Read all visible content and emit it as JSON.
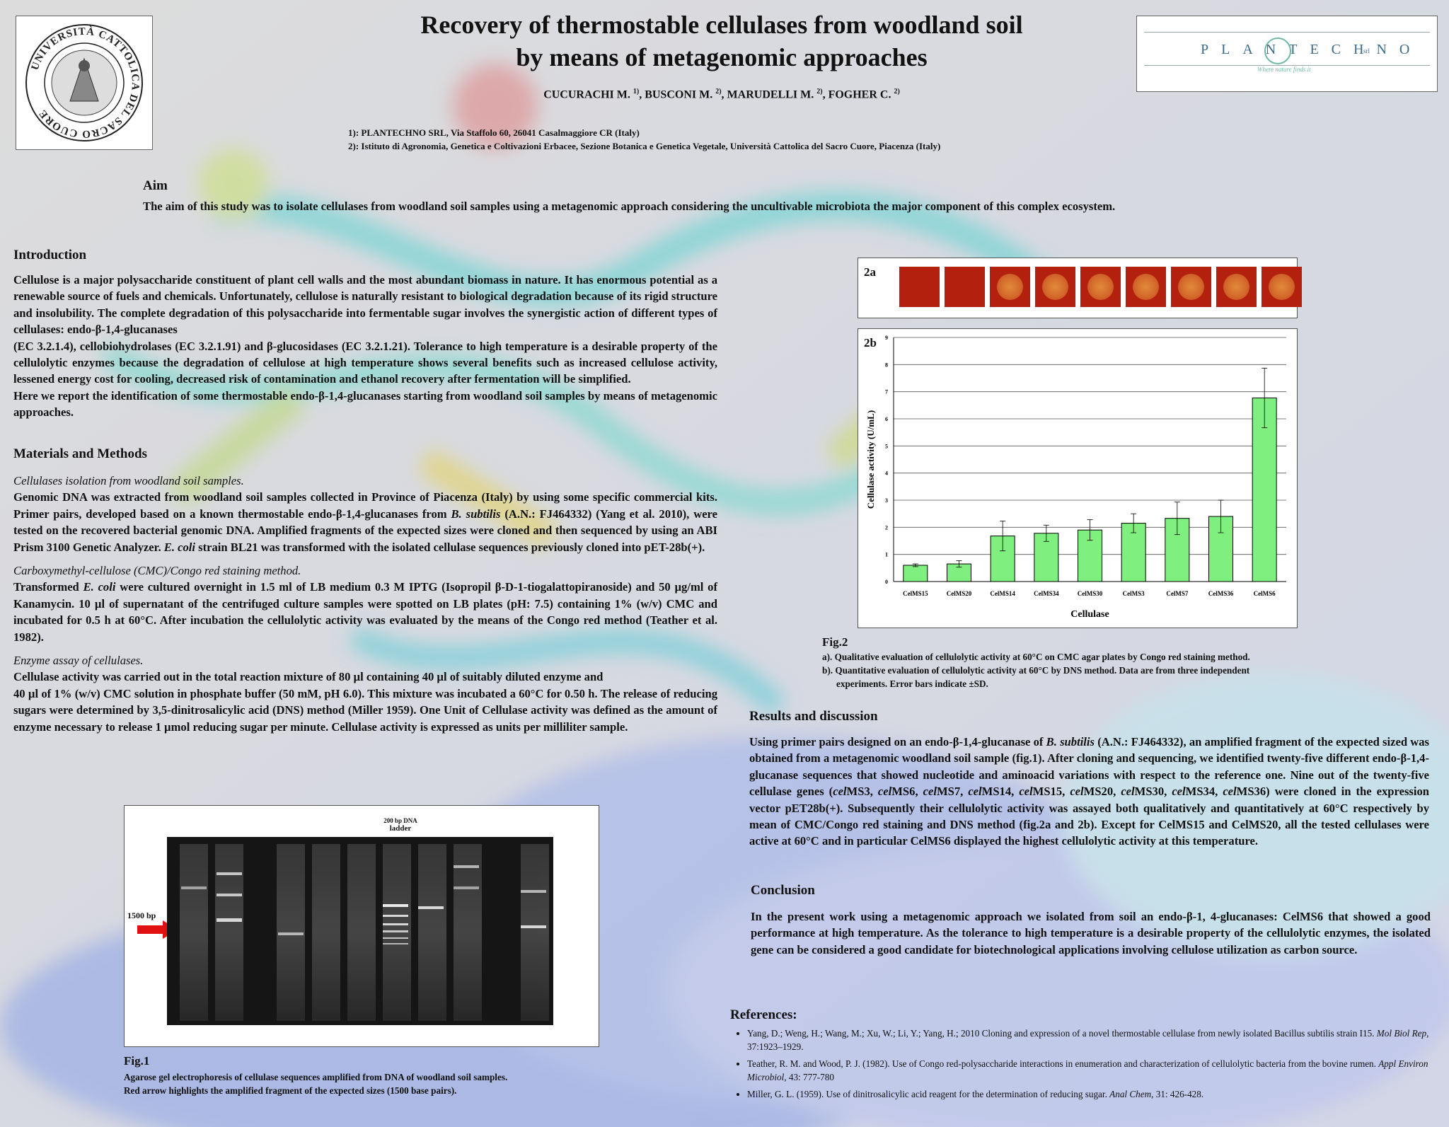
{
  "title_line1": "Recovery of thermostable cellulases from woodland soil",
  "title_line2": "by means of metagenomic approaches",
  "authors": {
    "a1": "CUCURACHI M. ",
    "a1_sup": "1)",
    "a2": ", BUSCONI M. ",
    "a2_sup": "2)",
    "a3": ", MARUDELLI M. ",
    "a3_sup": "2)",
    "a4": ", FOGHER C. ",
    "a4_sup": "2)"
  },
  "affiliations": [
    "1): PLANTECHNO SRL, Via Staffolo 60, 26041 Casalmaggiore CR (Italy)",
    "2): Istituto di Agronomia, Genetica e Coltivazioni Erbacee, Sezione Botanica e Genetica Vegetale, Università Cattolica del Sacro Cuore, Piacenza (Italy)"
  ],
  "logos": {
    "university_text": "UNIVERSITÀ CATTOLICA DEL SACRO CUORE",
    "plantechno": "PLANTECHNO",
    "plantechno_suffix": "srl",
    "plantechno_tagline": "Where nature finds it"
  },
  "aim": {
    "heading": "Aim",
    "text": "The aim of this study was to isolate cellulases from woodland soil samples using a metagenomic approach considering the uncultivable microbiota the major component of this complex ecosystem."
  },
  "introduction": {
    "heading": "Introduction",
    "p1": "Cellulose is a major polysaccharide constituent of plant cell walls and the most abundant biomass in nature. It has enormous potential as a renewable source of fuels and chemicals. Unfortunately, cellulose is naturally resistant to biological degradation because of its rigid structure and insolubility. The complete degradation of this polysaccharide into fermentable sugar involves the synergistic action of different types of cellulases: endo-β-1,4-glucanases",
    "p2": "(EC 3.2.1.4), cellobiohydrolases (EC 3.2.1.91) and β-glucosidases (EC 3.2.1.21). Tolerance to high temperature is a desirable property of the cellulolytic enzymes because the degradation of cellulose at high temperature shows several benefits such as increased cellulose activity, lessened energy cost for cooling, decreased risk of contamination and ethanol recovery after fermentation will be simplified.",
    "p3": "Here we report the identification of some thermostable endo-β-1,4-glucanases starting from woodland soil samples by means of metagenomic approaches."
  },
  "methods": {
    "heading": "Materials and Methods",
    "s1_title": "Cellulases isolation from woodland soil samples.",
    "s1_a": "Genomic DNA was extracted from woodland soil samples collected in Province of Piacenza (Italy) by using some specific commercial kits. Primer pairs, developed based on a known thermostable endo-β-1,4-glucanases from ",
    "s1_i1": "B. subtilis",
    "s1_b": " (A.N.: FJ464332) (Yang et al. 2010), were tested on the recovered bacterial genomic DNA. Amplified fragments of the expected sizes were cloned and then sequenced by using an ABI Prism 3100 Genetic Analyzer. ",
    "s1_i2": "E. coli",
    "s1_c": " strain BL21 was transformed with the isolated cellulase sequences previously cloned into pET-28b(+).",
    "s2_title": "Carboxymethyl-cellulose (CMC)/Congo red staining method.",
    "s2_a": "Transformed ",
    "s2_i1": "E. coli",
    "s2_b": " were cultured overnight in 1.5 ml of LB medium 0.3 M IPTG (Isopropil β-D-1-tiogalattopiranoside) and 50 µg/ml of Kanamycin. 10 µl of supernatant of the centrifuged culture samples were spotted on LB plates (pH: 7.5) containing 1% (w/v) CMC and incubated for 0.5 h at 60°C. After incubation the cellulolytic activity was evaluated by the means of the Congo red method (Teather et al. 1982).",
    "s3_title": "Enzyme assay of cellulases.",
    "s3_l1": "Cellulase activity was carried out in the total reaction mixture of 80 µl containing 40 µl of suitably diluted enzyme and",
    "s3_l2": "40 µl of 1% (w/v) CMC solution in phosphate buffer (50 mM, pH 6.0). This mixture was incubated a 60°C for 0.50 h. The release of reducing sugars were determined by 3,5-dinitrosalicylic acid (DNS) method (Miller 1959). One Unit of Cellulase activity was defined as the amount of enzyme necessary to release 1 µmol reducing sugar per minute. Cellulase activity is expressed as units per milliliter sample."
  },
  "fig1": {
    "ladder_l1": "200 bp DNA",
    "ladder_l2": "ladder",
    "arrow_label": "1500 bp",
    "label": "Fig.1",
    "caption_l1": "Agarose gel electrophoresis of cellulase sequences amplified from DNA of woodland soil samples.",
    "caption_l2": "Red arrow highlights the amplified fragment of the expected sizes (1500 base pairs)."
  },
  "fig2": {
    "panel_a": "2a",
    "panel_b": "2b",
    "label": "Fig.2",
    "caption_a": "a). Qualitative evaluation of cellulolytic activity at 60°C on CMC agar plates by Congo red staining method.",
    "caption_b1": "b). Quantitative evaluation of cellulolytic activity at 60°C by DNS method. Data are from three independent",
    "caption_b2": "experiments. Error bars indicate ±SD.",
    "colors": {
      "bar": "#7ff07f",
      "spot": "#b4200e"
    }
  },
  "chart_data": {
    "type": "bar",
    "categories": [
      "CelMS15",
      "CelMS20",
      "CelMS14",
      "CelMS34",
      "CelMS30",
      "CelMS3",
      "CelMS7",
      "CelMS36",
      "CelMS6"
    ],
    "values": [
      0.6,
      0.65,
      1.68,
      1.78,
      1.9,
      2.15,
      2.33,
      2.4,
      6.77
    ],
    "errors": [
      0.05,
      0.12,
      0.55,
      0.3,
      0.38,
      0.35,
      0.6,
      0.6,
      1.1
    ],
    "ylim": [
      0,
      9
    ],
    "yticks": [
      "0",
      "1",
      "2",
      "3",
      "4",
      "5",
      "6",
      "7",
      "8",
      "9"
    ],
    "xlabel": "Cellulase",
    "ylabel": "Cellulase activity (U/mL)",
    "grid": true
  },
  "results": {
    "heading": "Results and discussion",
    "a": "Using primer pairs designed on an endo-β-1,4-glucanase of ",
    "i1": "B. subtilis",
    "b": " (A.N.: FJ464332), an amplified fragment of the expected sized was obtained from a metagenomic woodland soil sample (fig.1). After cloning and sequencing, we identified twenty-five different endo-β-1,4-glucanase sequences that showed nucleotide and aminoacid variations with respect to the reference one. Nine out of the twenty-five cellulase genes (",
    "g1i": "cel",
    "g1": "MS3, ",
    "g2i": "cel",
    "g2": "MS6, ",
    "g3i": "cel",
    "g3": "MS7, ",
    "g4i": "cel",
    "g4": "MS14, ",
    "g5i": "cel",
    "g5": "MS15, ",
    "g6i": "cel",
    "g6": "MS20, ",
    "g7i": "cel",
    "g7": "MS30, ",
    "g8i": "cel",
    "g8": "MS34, ",
    "g9i": "cel",
    "g9": "MS36)",
    "c": " were cloned in the expression vector pET28b(+). Subsequently their cellulolytic activity was assayed both qualitatively and quantitatively at 60°C respectively by mean of CMC/Congo red staining and DNS method (fig.2a and 2b). Except for CelMS15 and CelMS20, all the tested cellulases were active at 60°C and in particular CelMS6 displayed the highest cellulolytic activity at this temperature."
  },
  "conclusion": {
    "heading": "Conclusion",
    "text": "In the present work using a metagenomic approach we isolated from soil an endo-β-1, 4-glucanases: CelMS6 that showed a good performance at high temperature. As the tolerance to high temperature is a desirable property of the cellulolytic enzymes, the isolated gene can be considered a good candidate for biotechnological applications involving cellulose utilization as carbon source."
  },
  "references": {
    "heading": "References:",
    "r1_a": "Yang, D.; Weng, H.; Wang, M.; Xu, W.; Li, Y.; Yang, H.; 2010 Cloning and expression of a novel thermostable cellulase from newly isolated Bacillus subtilis strain I15. ",
    "r1_i": "Mol Biol Rep",
    "r1_b": ", 37:1923–1929.",
    "r2_a": "Teather, R. M. and Wood, P. J. (1982). Use of Congo red-polysaccharide interactions in enumeration and characterization of cellulolytic bacteria from the bovine rumen. ",
    "r2_i": "Appl Environ Microbiol",
    "r2_b": ", 43: 777-780",
    "r3_a": "Miller, G. L. (1959). Use of dinitrosalicylic acid reagent for the determination of reducing sugar. ",
    "r3_i": "Anal Chem",
    "r3_b": ", 31: 426-428."
  }
}
